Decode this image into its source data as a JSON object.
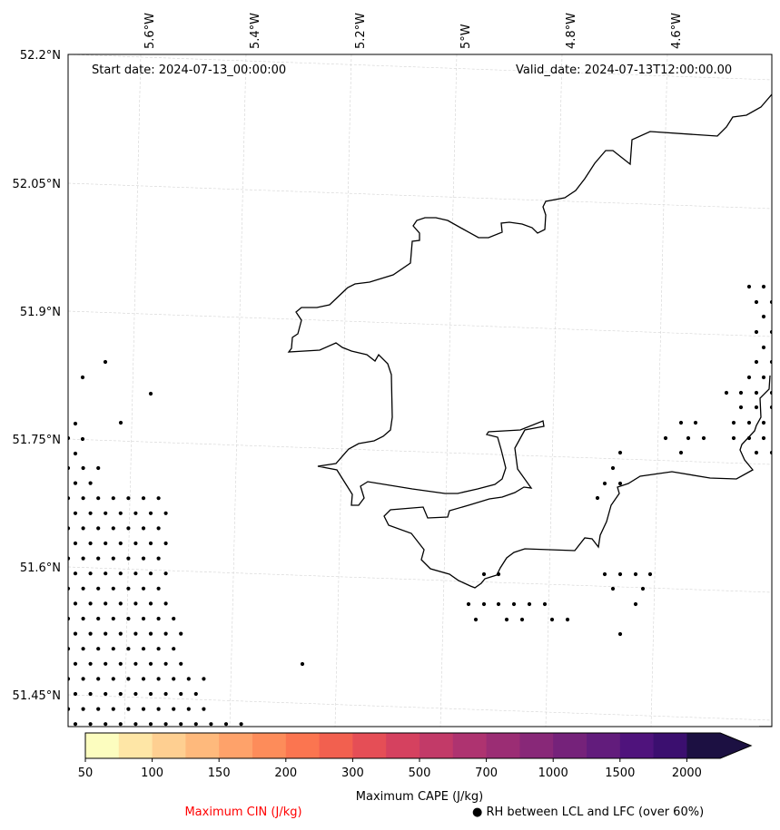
{
  "map": {
    "start_date": "Start date: 2024-07-13_00:00:00",
    "valid_date": "Valid_date: 2024-07-13T12:00:00.00",
    "lon_labels": [
      "5.6°W",
      "5.4°W",
      "5.2°W",
      "5°W",
      "4.8°W",
      "4.6°W"
    ],
    "lat_labels": [
      "52.2°N",
      "52.05°N",
      "51.9°N",
      "51.75°N",
      "51.6°N",
      "51.45°N"
    ],
    "colors": {
      "coastline": "#000000",
      "gridline": "#d3d3d3",
      "cin_label": "#ff0000",
      "dot": "#000000"
    }
  },
  "colorbar": {
    "title": "Maximum CAPE (J/kg)",
    "tick_labels": [
      "50",
      "100",
      "150",
      "200",
      "300",
      "500",
      "700",
      "1000",
      "1500",
      "2000"
    ],
    "colors": [
      "#fcfdbf",
      "#fee6a6",
      "#fecf91",
      "#feb97c",
      "#fea26a",
      "#fd8c5a",
      "#fb7550",
      "#f2604f",
      "#e54e56",
      "#d5415f",
      "#c23a68",
      "#ae3370",
      "#9b2d74",
      "#882878",
      "#75227a",
      "#621c7c",
      "#4f137c",
      "#3b0f6f",
      "#1c1042"
    ]
  },
  "legend": {
    "cin_label": "Maximum CIN (J/kg)",
    "rh_marker": "●",
    "rh_label": "RH between LCL and LFC (over 60%)"
  }
}
